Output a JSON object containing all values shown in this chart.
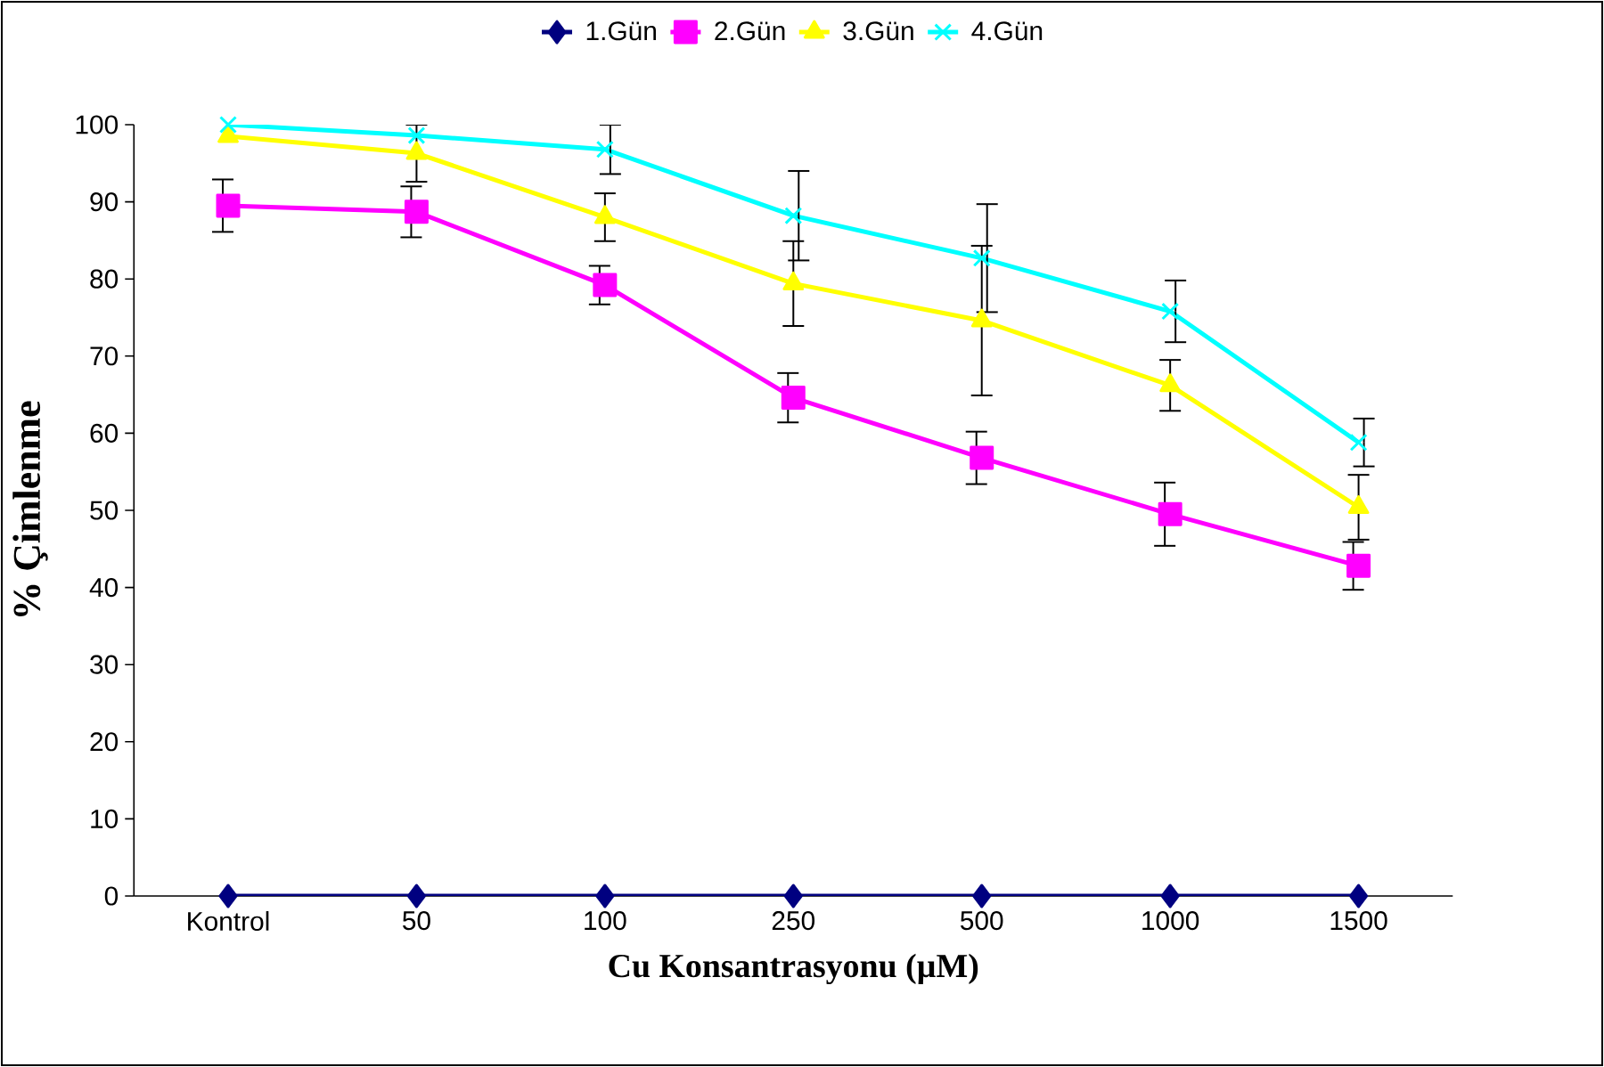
{
  "chart_data": {
    "type": "line",
    "xlabel": "Cu Konsantrasyonu (µM)",
    "ylabel": "% Çimlenme",
    "categories": [
      "Kontrol",
      "50",
      "100",
      "250",
      "500",
      "1000",
      "1500"
    ],
    "ylim": [
      0,
      100
    ],
    "yticks": [
      0,
      10,
      20,
      30,
      40,
      50,
      60,
      70,
      80,
      90,
      100
    ],
    "legend": "top",
    "grid": false,
    "series": [
      {
        "name": "1.Gün",
        "color": "#000080",
        "marker": "diamond",
        "values": [
          0,
          0,
          0,
          0,
          0,
          0,
          0
        ]
      },
      {
        "name": "2.Gün",
        "color": "#ff00ff",
        "marker": "square",
        "values": [
          89.5,
          88.7,
          79.2,
          64.6,
          56.8,
          49.5,
          42.8
        ],
        "errors": [
          3.4,
          3.3,
          2.5,
          3.2,
          3.4,
          4.1,
          3.1
        ]
      },
      {
        "name": "3.Gün",
        "color": "#ffff00",
        "marker": "triangle",
        "values": [
          98.5,
          96.3,
          88,
          79.4,
          74.6,
          66.2,
          50.4
        ],
        "errors": [
          null,
          3.7,
          3.1,
          5.5,
          9.7,
          3.3,
          4.2
        ]
      },
      {
        "name": "4.Gün",
        "color": "#00ffff",
        "marker": "cross",
        "values": [
          100,
          98.6,
          96.8,
          88.2,
          82.7,
          75.8,
          58.8
        ],
        "errors": [
          null,
          null,
          3.2,
          5.8,
          7,
          4,
          3.1
        ]
      }
    ]
  }
}
